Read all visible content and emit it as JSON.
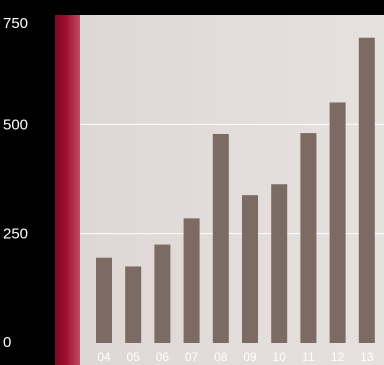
{
  "colors": {
    "background": "#000000",
    "plot_area": "#e2dcda",
    "band": "#9a0f2c",
    "bar": "#7b6b62",
    "gridline": "#ffffff",
    "tick_label": "#ffffff"
  },
  "chart_data": {
    "type": "bar",
    "categories": [
      "04",
      "05",
      "06",
      "07",
      "08",
      "09",
      "10",
      "11",
      "12",
      "13"
    ],
    "values": [
      195,
      175,
      225,
      285,
      478,
      338,
      363,
      480,
      550,
      698
    ],
    "ylim": [
      0,
      750
    ],
    "yticks": [
      0,
      250,
      500,
      750
    ],
    "ytick_labels": [
      "0",
      "250",
      "500",
      "750"
    ],
    "grid": true,
    "legend": "none"
  }
}
